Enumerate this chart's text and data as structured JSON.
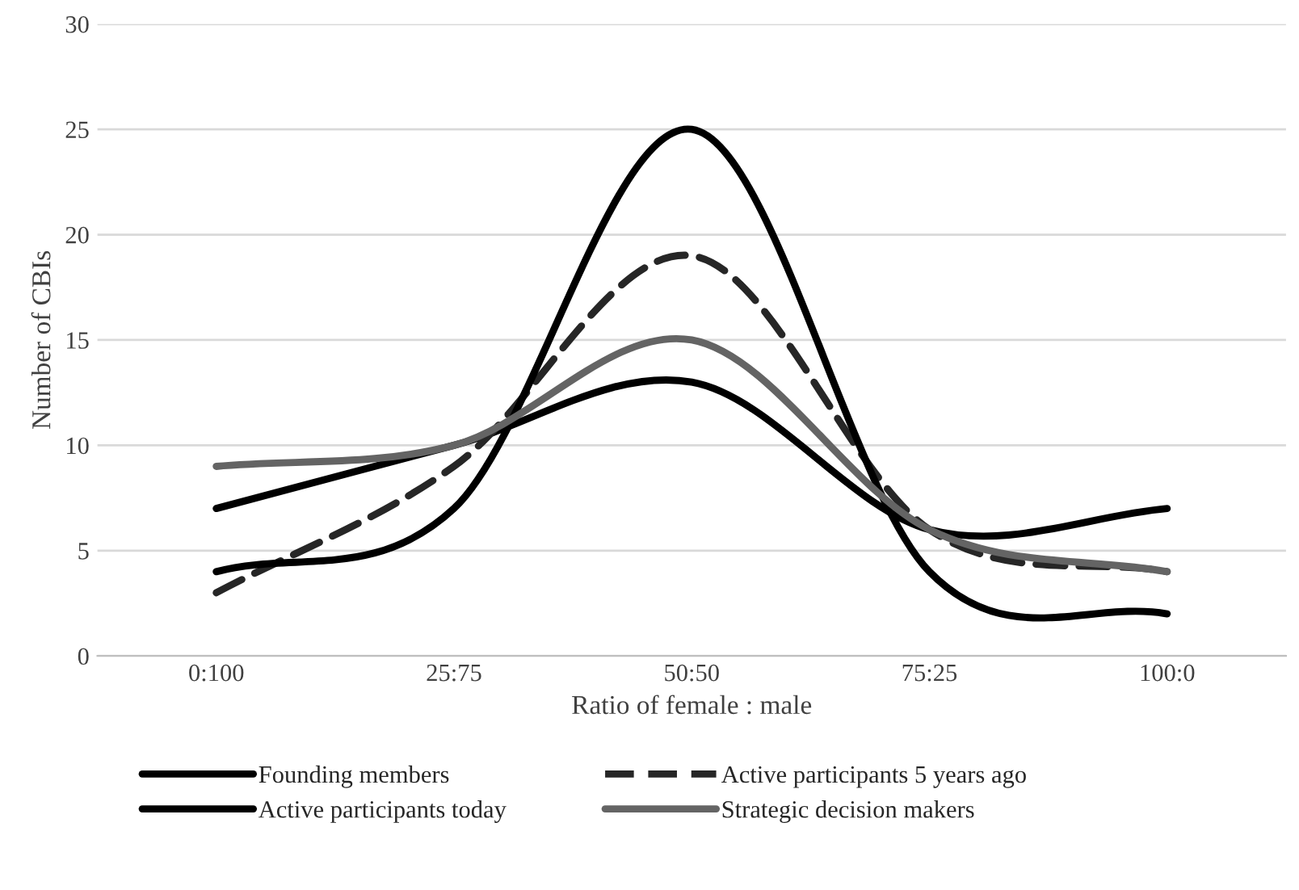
{
  "chart_data": {
    "type": "line",
    "xlabel": "Ratio of female : male",
    "ylabel": "Number of CBIs",
    "categories": [
      "0:100",
      "25:75",
      "50:50",
      "75:25",
      "100:0"
    ],
    "series": [
      {
        "name": "Founding members",
        "color": "#000000",
        "values": [
          7,
          10,
          13,
          6,
          7
        ],
        "line_style": "solid"
      },
      {
        "name": "Active participants 5 years ago",
        "color": "#262626",
        "values": [
          3,
          9,
          19,
          6,
          4
        ],
        "line_style": "dashed"
      },
      {
        "name": "Active participants today",
        "color": "#000000",
        "values": [
          4,
          7,
          25,
          4,
          2
        ],
        "line_style": "solid"
      },
      {
        "name": "Strategic decision makers",
        "color": "#646464",
        "values": [
          9,
          10,
          15,
          6,
          4
        ],
        "line_style": "solid"
      }
    ],
    "ylim": [
      0,
      30
    ],
    "yticks": [
      0,
      5,
      10,
      15,
      20,
      25,
      30
    ],
    "grid": "y",
    "legend": "bottom"
  }
}
